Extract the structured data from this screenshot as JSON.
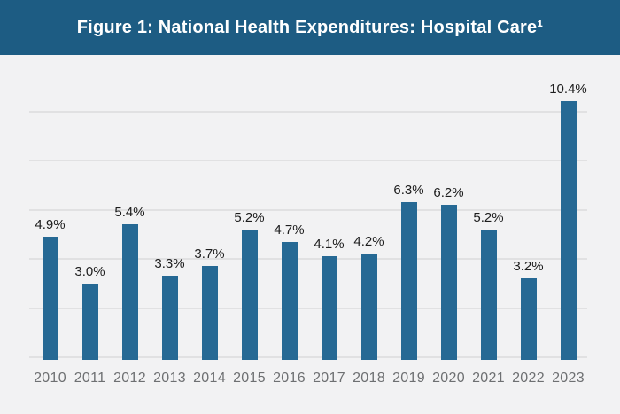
{
  "header": {
    "title": "Figure 1: National Health Expenditures: Hospital Care¹",
    "bg_color": "#1D5C83",
    "text_color": "#FFFFFF"
  },
  "chart_data": {
    "type": "bar",
    "title": "Figure 1: National Health Expenditures: Hospital Care¹",
    "categories": [
      "2010",
      "2011",
      "2012",
      "2013",
      "2014",
      "2015",
      "2016",
      "2017",
      "2018",
      "2019",
      "2020",
      "2021",
      "2022",
      "2023"
    ],
    "values": [
      4.9,
      3.0,
      5.4,
      3.3,
      3.7,
      5.2,
      4.7,
      4.1,
      4.2,
      6.3,
      6.2,
      5.2,
      3.2,
      10.4
    ],
    "value_labels": [
      "4.9%",
      "3.0%",
      "5.4%",
      "3.3%",
      "3.7%",
      "5.2%",
      "4.7%",
      "4.1%",
      "4.2%",
      "6.3%",
      "6.2%",
      "5.2%",
      "3.2%",
      "10.4%"
    ],
    "unit": "percent",
    "xlabel": "",
    "ylabel": "",
    "ylim": [
      0,
      11
    ],
    "gridline_percents": [
      0,
      2,
      4,
      6,
      8,
      10
    ],
    "grid": true,
    "legend_position": "none",
    "bar_color": "#266994",
    "background_color": "#F2F2F3",
    "gridline_color": "#E1E1E2",
    "value_label_color": "#1D1D1D",
    "x_tick_color": "#6E7072"
  }
}
